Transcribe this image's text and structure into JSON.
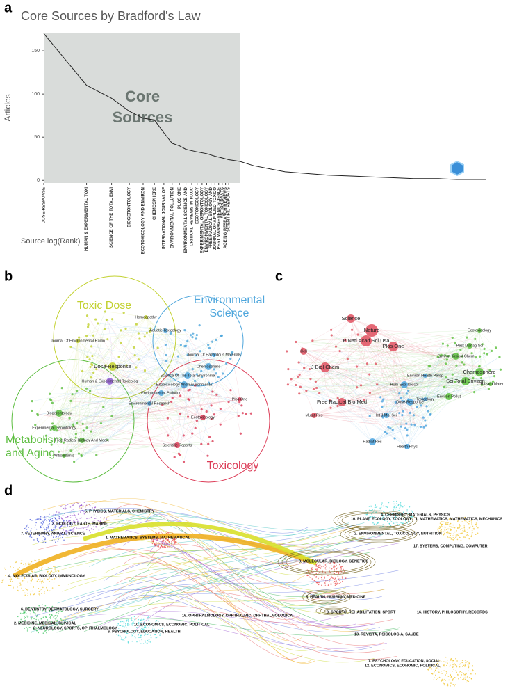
{
  "panel_labels": [
    "a",
    "b",
    "c",
    "d"
  ],
  "chart_data": {
    "type": "line",
    "title": "Core Sources by Bradford's Law",
    "y_label": "Articles",
    "x_label": "Source log(Rank)",
    "annotation_lines": [
      "Core",
      "Sources"
    ],
    "x": [
      1,
      2,
      3,
      4,
      5,
      6,
      7,
      8,
      9,
      10,
      12,
      14,
      16,
      18,
      20,
      22,
      24,
      30,
      40,
      50,
      70,
      100,
      150,
      200,
      300,
      400,
      600,
      800,
      1000,
      1300
    ],
    "values": [
      170,
      110,
      95,
      80,
      72,
      70,
      55,
      43,
      40,
      36,
      33,
      31,
      28,
      26,
      24,
      23,
      22,
      17,
      13,
      10,
      8,
      6,
      5,
      4,
      3,
      2,
      2,
      1,
      1,
      1
    ],
    "color": "#222222",
    "shade_color": "#d9dcda",
    "x_log": true,
    "xlim": [
      1,
      1300
    ],
    "ylim": [
      -3,
      171
    ],
    "yticks": [
      0,
      50,
      100,
      150
    ],
    "xticks": [
      {
        "value": 1,
        "label": "DOSE-RESPONSE"
      },
      {
        "value": 2,
        "label": "HUMAN & EXPERIMENTAL TOXI"
      },
      {
        "value": 3,
        "label": "SCIENCE OF THE TOTAL ENVI"
      },
      {
        "value": 4,
        "label": "BIOGERONTOLOGY"
      },
      {
        "value": 5,
        "label": "ECOTOXICOLOGY AND ENVIRON"
      },
      {
        "value": 6,
        "label": "CHEMOSPHERE"
      },
      {
        "value": 7,
        "label": "INTERNATIONAL JOURNAL OF"
      },
      {
        "value": 8,
        "label": "ENVIRONMENTAL POLLUTION"
      },
      {
        "value": 9,
        "label": "PLOS ONE"
      },
      {
        "value": 10,
        "label": "ENVIRONMENTAL SCIENCE AND"
      },
      {
        "value": 11,
        "label": "CRITICAL REVIEWS IN TOXIC"
      },
      {
        "value": 12,
        "label": "ECOTOXICOLOGY"
      },
      {
        "value": 13,
        "label": "EXPERIMENTAL GERONTOLOGY"
      },
      {
        "value": 14,
        "label": "ENVIRONMENTAL TOXICOLOGY"
      },
      {
        "value": 15,
        "label": "FREE RADICAL BIOLOGY AND"
      },
      {
        "value": 16,
        "label": "JOURNAL OF APPLIED TOXICO"
      },
      {
        "value": 17,
        "label": "PEST MANAGEMENT SCIENCE"
      },
      {
        "value": 18,
        "label": "ANTIOXIDANTS"
      },
      {
        "value": 19,
        "label": "AGEING RESEARCH REVIEWS"
      },
      {
        "value": 20,
        "label": "SCIENTIFIC REPORTS"
      }
    ]
  },
  "cocitation_journals": {
    "clusters": [
      {
        "name": [
          "Toxic Dose"
        ],
        "color": "#c2d12f"
      },
      {
        "name": [
          "Environmental",
          "Science"
        ],
        "color": "#4ea6dc"
      },
      {
        "name": [
          "Metabolism",
          "and Aging"
        ],
        "color": "#5cbd3f"
      },
      {
        "name": [
          "Toxicology"
        ],
        "color": "#dc3b56"
      },
      {
        "color": "#8e5bd0"
      }
    ],
    "nodes": [
      {
        "label": "Dose-Response",
        "cluster": 0
      },
      {
        "label": "Human & Experimental Toxicolog",
        "cluster": 4
      },
      {
        "label": "Science Of The Total Environme",
        "cluster": 1
      },
      {
        "label": "Chemosphere",
        "cluster": 1
      },
      {
        "label": "Ecotoxicology And Environmenta",
        "cluster": 1
      },
      {
        "label": "Environmental Pollution",
        "cluster": 1
      },
      {
        "label": "Biogerontology",
        "cluster": 2
      },
      {
        "label": "Free Radical Biology And Medic",
        "cluster": 2
      },
      {
        "label": "Experimental Gerontology",
        "cluster": 2
      },
      {
        "label": "Antioxidants",
        "cluster": 2
      },
      {
        "label": "Ecotoxicology",
        "cluster": 3
      },
      {
        "label": "Scientific Reports",
        "cluster": 3
      },
      {
        "label": "Journal Of Hazardous Materials",
        "cluster": 1
      },
      {
        "label": "Aquatic Toxicology",
        "cluster": 1
      },
      {
        "label": "Homeopathy",
        "cluster": 0
      },
      {
        "label": "Plos One",
        "cluster": 3
      },
      {
        "label": "Environmental Research",
        "cluster": 1
      },
      {
        "label": "Journal Of Environmental Radio",
        "cluster": 0
      }
    ]
  },
  "cocitation_sources": {
    "clusters": [
      {
        "color": "#e0505f"
      },
      {
        "color": "#5cc03c"
      },
      {
        "color": "#4aa3df"
      }
    ],
    "nodes": [
      {
        "label": "Nature",
        "cluster": 0
      },
      {
        "label": "P Natl Acad Sci Usa",
        "cluster": 0
      },
      {
        "label": "Science",
        "cluster": 0
      },
      {
        "label": "Plos One",
        "cluster": 0
      },
      {
        "label": "J Biol Chem",
        "cluster": 0
      },
      {
        "label": "Free Radical Bio Med",
        "cluster": 0
      },
      {
        "label": "Mutat Res",
        "cluster": 0
      },
      {
        "label": "Cell",
        "cluster": 0
      },
      {
        "label": "Hum Exp Toxicol",
        "cluster": 2
      },
      {
        "label": "Dose-Response",
        "cluster": 2
      },
      {
        "label": "Int J Mol Sci",
        "cluster": 2
      },
      {
        "label": "Radiat Res",
        "cluster": 2
      },
      {
        "label": "Health Phys",
        "cluster": 2
      },
      {
        "label": "Environ Health Persp",
        "cluster": 2
      },
      {
        "label": "Toxicology",
        "cluster": 2
      },
      {
        "label": "Environ Toxicol Chem",
        "cluster": 1
      },
      {
        "label": "Pest Manag Sci",
        "cluster": 1
      },
      {
        "label": "Chemosphere",
        "cluster": 1
      },
      {
        "label": "Sci Total Environ",
        "cluster": 1
      },
      {
        "label": "Environ Pollut",
        "cluster": 1
      },
      {
        "label": "J Hazard Mater",
        "cluster": 1
      },
      {
        "label": "Ecotoxicology",
        "cluster": 1
      }
    ]
  },
  "dual_map": {
    "left_labels": [
      "5. PHYSICS, MATERIALS, CHEMISTRY",
      "3. ECOLOGY, EARTH, MARINE",
      "7. VETERINARY, ANIMAL, SCIENCE",
      "1. MATHEMATICS, SYSTEMS, MATHEMATICAL",
      "4. MOLECULAR, BIOLOGY, IMMUNOLOGY",
      "6. DENTISTRY, DERMATOLOGY, SURGERY",
      "2. MEDICINE, MEDICAL, CLINICAL",
      "8. NEUROLOGY, SPORTS, OPHTHALMOLOGY",
      "10. ECONOMICS, ECONOMIC, POLITICAL",
      "6. PSYCHOLOGY, EDUCATION, HEALTH",
      "16. OPHTHALMOLOGY, OPHTHALMIC, OPHTHALMOLOGICA"
    ],
    "right_labels": [
      "4. CHEMISTRY, MATERIALS, PHYSICS",
      "1. MATHEMATICS, MATHEMATICS, MECHANICS",
      "10. PLANT, ECOLOGY, ZOOLOGY",
      "2. ENVIRONMENTAL, TOXICOLOGY, NUTRITION",
      "8. MOLECULAR, BIOLOGY, GENETICS",
      "17. SYSTEMS, COMPUTING, COMPUTER",
      "5. HEALTH, NURSING, MEDICINE",
      "9. SPORTS, REHABILITATION, SPORT",
      "16. HISTORY, PHILOSOPHY, RECORDS",
      "13. REVISTA, PSICOLOGIA, SAUDE",
      "7. PSYCHOLOGY, EDUCATION, SOCIAL",
      "12. ECONOMICS, ECONOMIC, POLITICAL"
    ]
  }
}
